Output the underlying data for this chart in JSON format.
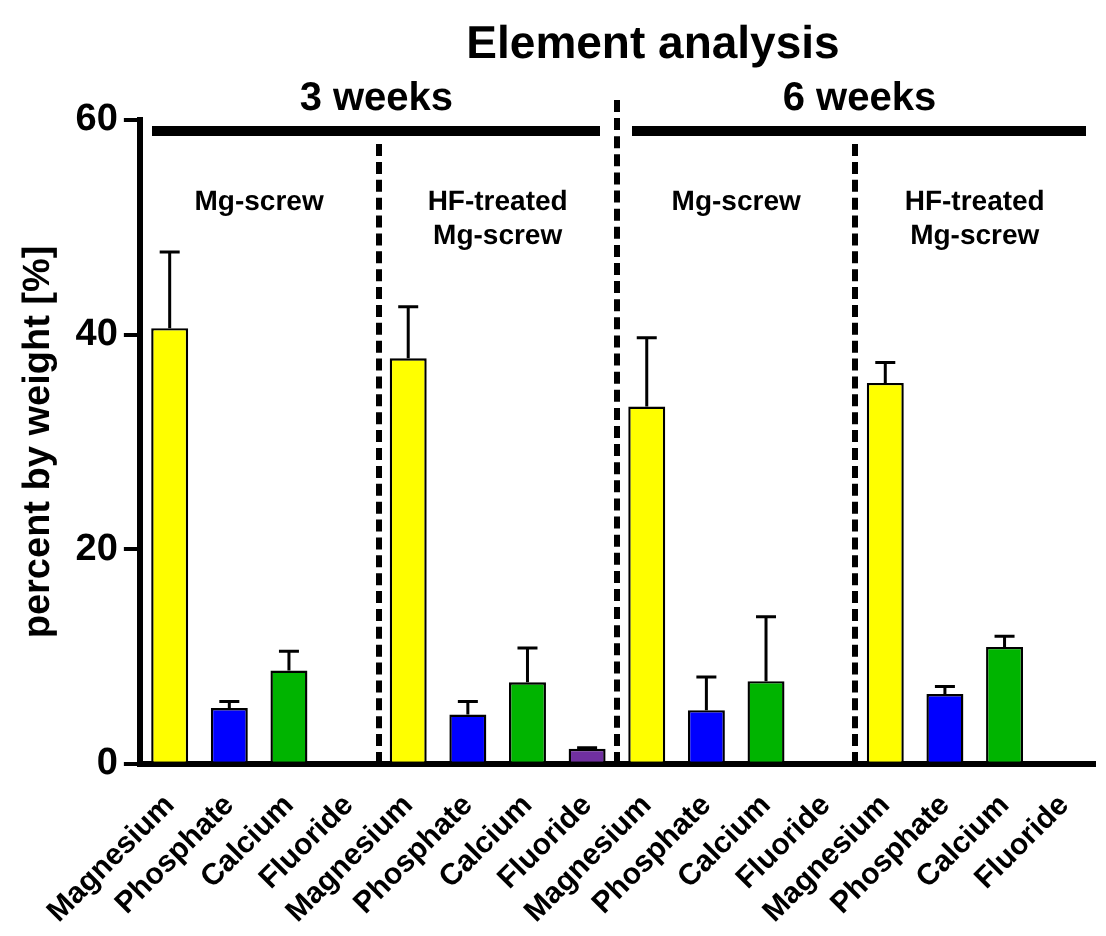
{
  "chart_data": {
    "type": "bar",
    "title": "Element analysis",
    "ylabel": "percent by weight [%]",
    "categories": [
      "Magnesium",
      "Phosphate",
      "Calcium",
      "Fluoride",
      "Magnesium",
      "Phosphate",
      "Calcium",
      "Fluoride",
      "Magnesium",
      "Phosphate",
      "Calcium",
      "Fluoride",
      "Magnesium",
      "Phosphate",
      "Calcium",
      "Fluoride"
    ],
    "values": [
      40.6,
      5.2,
      8.7,
      null,
      37.8,
      4.6,
      7.6,
      1.4,
      33.3,
      5.0,
      7.7,
      null,
      35.5,
      6.5,
      10.9,
      null
    ],
    "colors": [
      "#ffff00",
      "#0000ff",
      "#00b400",
      "#7030a0",
      "#ffff00",
      "#0000ff",
      "#00b400",
      "#7030a0",
      "#ffff00",
      "#0000ff",
      "#00b400",
      "#7030a0",
      "#ffff00",
      "#0000ff",
      "#00b400",
      "#7030a0"
    ],
    "errors": [
      [
        40.6,
        47.7
      ],
      [
        5.2,
        5.8
      ],
      [
        8.7,
        10.5
      ],
      null,
      [
        37.8,
        42.6
      ],
      [
        4.6,
        5.8
      ],
      [
        7.6,
        10.8
      ],
      [
        1.4,
        1.5
      ],
      [
        33.3,
        39.7
      ],
      [
        5.0,
        8.1
      ],
      [
        7.7,
        13.7
      ],
      null,
      [
        35.5,
        37.4
      ],
      [
        6.5,
        7.2
      ],
      [
        10.9,
        11.9
      ],
      null
    ],
    "ylim": [
      0,
      60
    ],
    "yticks": [
      0,
      20,
      40,
      60
    ],
    "grid": false,
    "legend": false,
    "annotations": [
      "3 weeks",
      "6 weeks",
      "Mg-screw",
      "HF-treated Mg-screw",
      "Mg-screw",
      "HF-treated Mg-screw"
    ]
  }
}
